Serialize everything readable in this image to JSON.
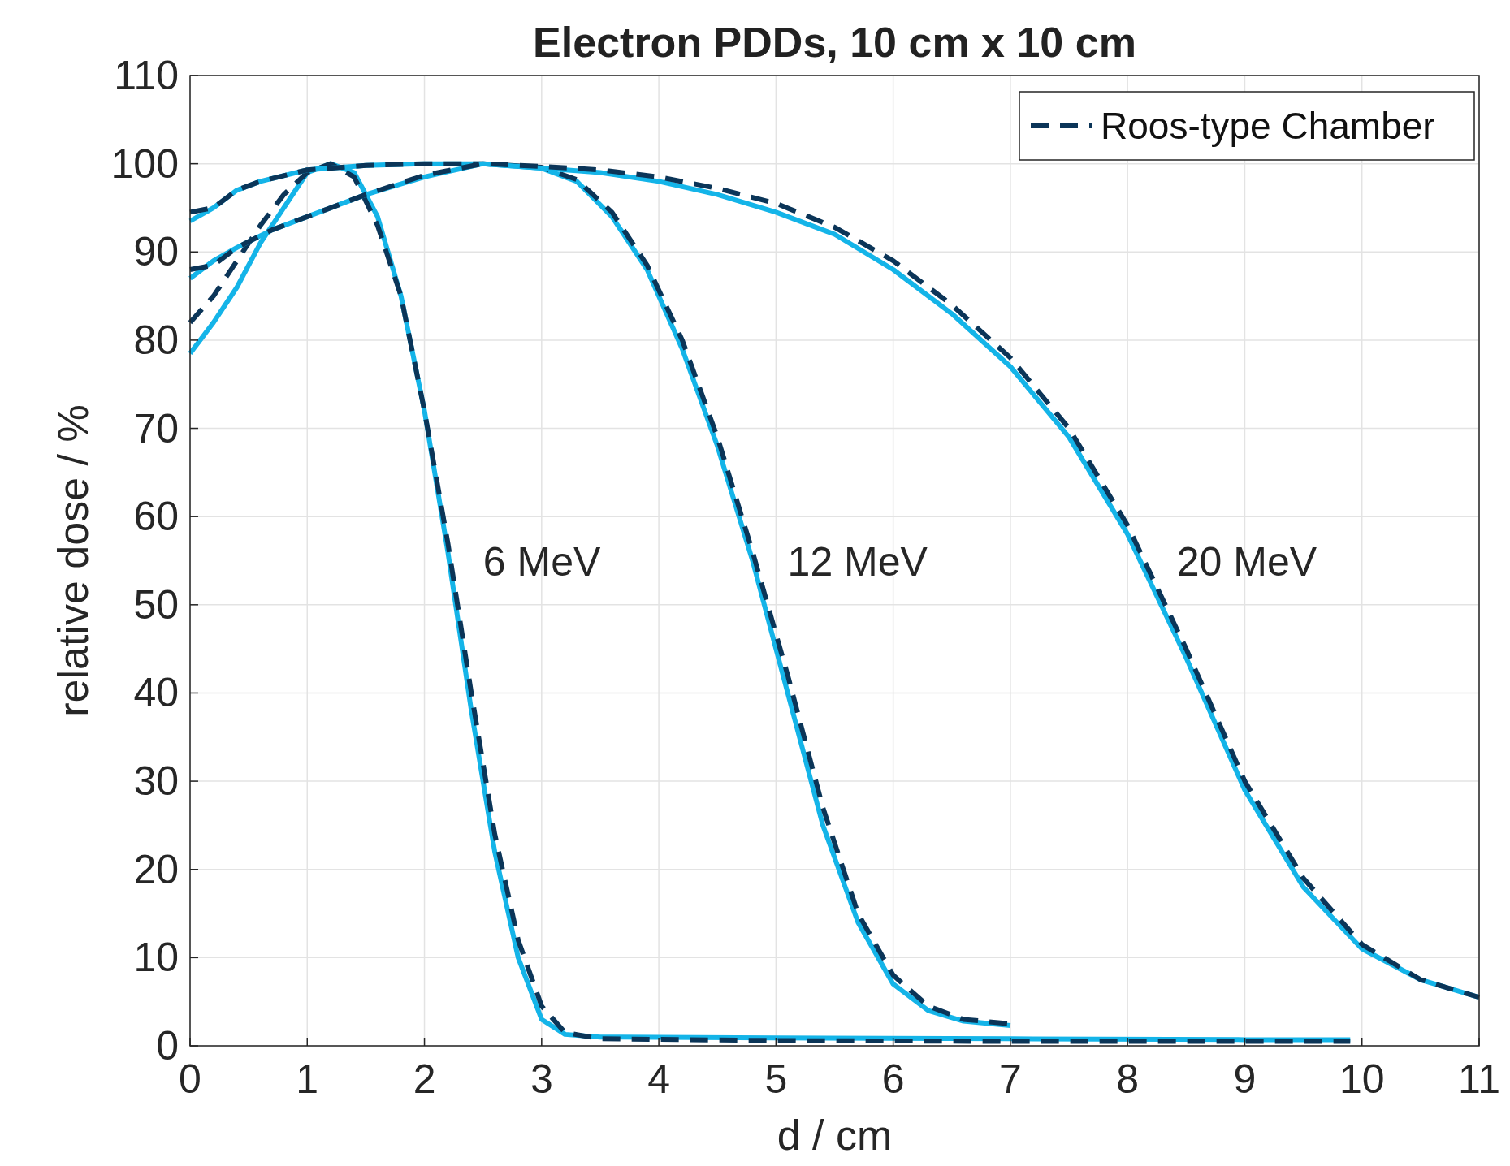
{
  "chart_data": {
    "type": "line",
    "title": "Electron PDDs, 10 cm x 10 cm",
    "xlabel": "d / cm",
    "ylabel": "relative dose / %",
    "xlim": [
      0,
      11
    ],
    "xticks": [
      0,
      1,
      2,
      3,
      4,
      5,
      6,
      7,
      8,
      9,
      10,
      11
    ],
    "ylim": [
      0,
      110
    ],
    "yticks": [
      0,
      10,
      20,
      30,
      40,
      50,
      60,
      70,
      80,
      90,
      100,
      110
    ],
    "grid": true,
    "legend": "top right",
    "marker": "none",
    "annotations": [
      "6 MeV",
      "12 MeV",
      "20 MeV"
    ],
    "series": [
      {
        "color": "#14b4e8",
        "line_style": "solid",
        "x": [
          0,
          0.2,
          0.4,
          0.6,
          0.8,
          1.0,
          1.2,
          1.4,
          1.6,
          1.8,
          2.0,
          2.2,
          2.4,
          2.6,
          2.8,
          3.0,
          3.2,
          3.5,
          5,
          7,
          9,
          9.9
        ],
        "values": [
          78.5,
          82,
          86,
          91,
          95,
          99,
          100,
          99,
          94,
          85,
          72,
          56,
          38,
          22,
          10,
          3,
          1.3,
          1.0,
          0.9,
          0.8,
          0.7,
          0.7
        ]
      },
      {
        "name": "Roos-type Chamber",
        "color": "#0b3558",
        "line_style": "dashed",
        "x": [
          0,
          0.2,
          0.4,
          0.6,
          0.8,
          1.0,
          1.2,
          1.4,
          1.6,
          1.8,
          2.0,
          2.2,
          2.4,
          2.6,
          2.8,
          3.0,
          3.2,
          3.5,
          5,
          7,
          9,
          9.9
        ],
        "values": [
          82,
          85,
          89,
          93,
          96.5,
          99,
          100,
          98.5,
          93,
          85,
          72,
          57,
          40,
          24,
          12,
          4.5,
          1.5,
          0.8,
          0.6,
          0.5,
          0.5,
          0.5
        ]
      },
      {
        "color": "#14b4e8",
        "line_style": "solid",
        "x": [
          0,
          0.2,
          0.4,
          0.6,
          1,
          1.5,
          2,
          2.5,
          3,
          3.3,
          3.6,
          3.9,
          4.2,
          4.5,
          4.8,
          5.1,
          5.4,
          5.7,
          6.0,
          6.3,
          6.6,
          7
        ],
        "values": [
          93.5,
          95,
          97,
          98,
          99.3,
          99.8,
          100,
          100,
          99.5,
          98,
          94,
          88,
          79,
          68,
          55,
          40,
          25,
          14,
          7,
          4,
          2.8,
          2.3
        ]
      },
      {
        "color": "#0b3558",
        "line_style": "dashed",
        "x": [
          0,
          0.2,
          0.4,
          0.6,
          1,
          1.5,
          2,
          2.5,
          3,
          3.3,
          3.6,
          3.9,
          4.2,
          4.5,
          4.8,
          5.1,
          5.4,
          5.7,
          6.0,
          6.3,
          6.6,
          7
        ],
        "values": [
          94.5,
          95,
          97,
          98,
          99.3,
          99.8,
          100,
          100,
          99.6,
          98.2,
          94.5,
          88.5,
          80,
          69,
          56,
          42,
          27,
          15,
          8,
          4.5,
          3,
          2.5
        ]
      },
      {
        "color": "#14b4e8",
        "line_style": "solid",
        "x": [
          0,
          0.2,
          0.4,
          0.7,
          1,
          1.5,
          2,
          2.5,
          3,
          3.5,
          4,
          4.5,
          5,
          5.5,
          6,
          6.5,
          7,
          7.5,
          8,
          8.5,
          9,
          9.5,
          10,
          10.5,
          11
        ],
        "values": [
          87,
          89,
          90.5,
          92.5,
          94,
          96.5,
          98.5,
          100,
          99.5,
          99,
          98,
          96.5,
          94.5,
          92,
          88,
          83,
          77,
          69,
          58,
          44,
          29,
          18,
          11,
          7.5,
          5.5
        ]
      },
      {
        "color": "#0b3558",
        "line_style": "dashed",
        "x": [
          0,
          0.2,
          0.4,
          0.7,
          1,
          1.5,
          2,
          2.5,
          3,
          3.5,
          4,
          4.5,
          5,
          5.5,
          6,
          6.5,
          7,
          7.5,
          8,
          8.5,
          9,
          9.5,
          10,
          10.5,
          11
        ],
        "values": [
          88,
          88.5,
          90.5,
          92.5,
          94,
          96.5,
          98.7,
          100,
          99.7,
          99.3,
          98.5,
          97.2,
          95.5,
          92.8,
          89,
          84,
          78,
          70,
          59,
          45,
          30,
          19,
          11.5,
          7.5,
          5.5
        ]
      }
    ]
  }
}
